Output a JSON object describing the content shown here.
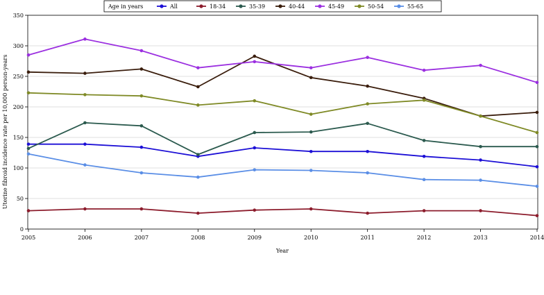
{
  "chart_data": {
    "type": "line",
    "title": "",
    "xlabel": "Year",
    "ylabel": "Uterine fibroid incidence rate per 10,000 person-years",
    "x": [
      2005,
      2006,
      2007,
      2008,
      2009,
      2010,
      2011,
      2012,
      2013,
      2014
    ],
    "ylim": [
      0,
      350
    ],
    "yticks": [
      0,
      50,
      100,
      150,
      200,
      250,
      300,
      350
    ],
    "grid": "horizontal",
    "legend": {
      "title": "Age in years",
      "placement": "top"
    },
    "series": [
      {
        "name": "All",
        "color": "#1c0fd6",
        "values": [
          139,
          139,
          134,
          119,
          133,
          127,
          127,
          119,
          113,
          102
        ]
      },
      {
        "name": "18-34",
        "color": "#8c1c2c",
        "values": [
          30,
          33,
          33,
          26,
          31,
          33,
          26,
          30,
          30,
          22
        ]
      },
      {
        "name": "35-39",
        "color": "#2b5a4e",
        "values": [
          132,
          174,
          169,
          122,
          158,
          159,
          173,
          145,
          135,
          135
        ]
      },
      {
        "name": "40-44",
        "color": "#3a1d0c",
        "values": [
          257,
          255,
          262,
          233,
          283,
          248,
          234,
          214,
          185,
          191
        ]
      },
      {
        "name": "45-49",
        "color": "#9b2fe0",
        "values": [
          285,
          311,
          292,
          264,
          274,
          264,
          281,
          260,
          268,
          240
        ]
      },
      {
        "name": "50-54",
        "color": "#7f8a26",
        "values": [
          223,
          220,
          218,
          203,
          210,
          188,
          205,
          211,
          185,
          158
        ]
      },
      {
        "name": "55-65",
        "color": "#5a8ee6",
        "values": [
          123,
          105,
          92,
          85,
          97,
          96,
          92,
          81,
          80,
          70
        ]
      }
    ]
  }
}
